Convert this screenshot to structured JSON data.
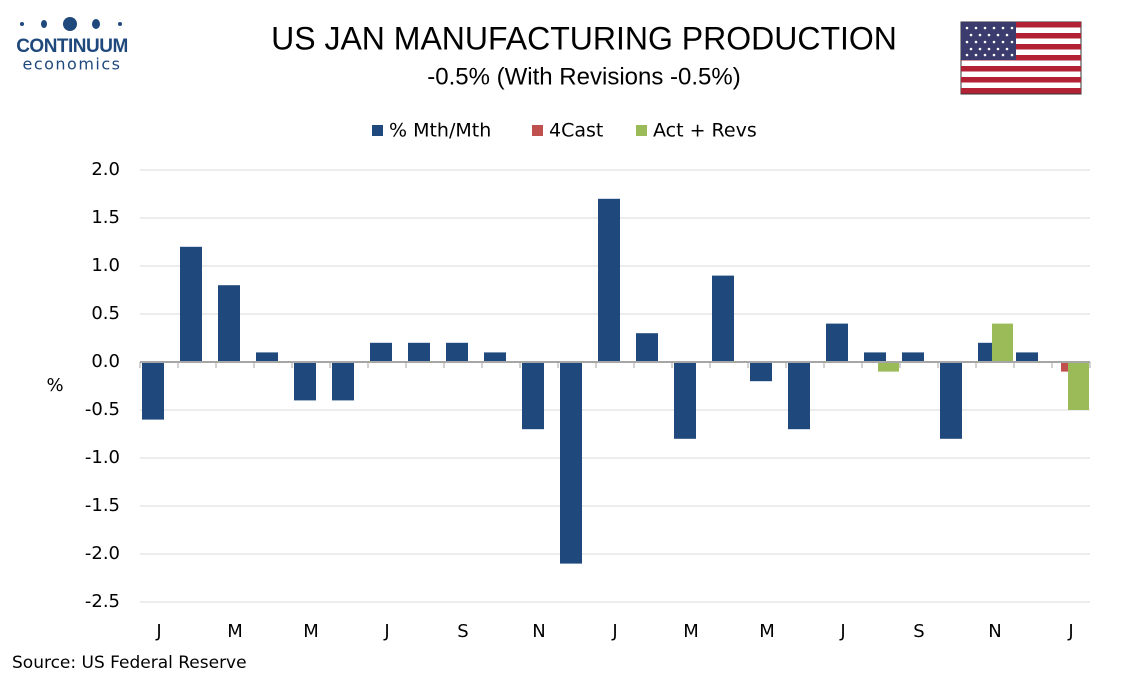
{
  "brand": {
    "name": "CONTINUUM",
    "tagline": "economics"
  },
  "source": "Source: US Federal Reserve",
  "chart_data": {
    "type": "bar",
    "title": "US JAN MANUFACTURING PRODUCTION",
    "subtitle": "-0.5% (With Revisions -0.5%)",
    "y_label": "%",
    "categories": [
      "J",
      null,
      "M",
      null,
      "M",
      null,
      "J",
      null,
      "S",
      null,
      "N",
      null,
      "J",
      null,
      "M",
      null,
      "M",
      null,
      "J",
      null,
      "S",
      null,
      "N",
      null,
      "J"
    ],
    "series": [
      {
        "name": "% Mth/Mth",
        "color": "#1f497d",
        "values": [
          -0.6,
          1.2,
          0.8,
          0.1,
          -0.4,
          -0.4,
          0.2,
          0.2,
          0.2,
          0.1,
          -0.7,
          -2.1,
          1.7,
          0.3,
          -0.8,
          0.9,
          -0.2,
          -0.7,
          0.4,
          0.1,
          0.1,
          -0.8,
          0.2,
          0.1,
          null
        ]
      },
      {
        "name": "4Cast",
        "color": "#c0504d",
        "values": [
          null,
          null,
          null,
          null,
          null,
          null,
          null,
          null,
          null,
          null,
          null,
          null,
          null,
          null,
          null,
          null,
          null,
          null,
          null,
          null,
          null,
          null,
          null,
          null,
          -0.1
        ]
      },
      {
        "name": "Act + Revs",
        "color": "#9bbb59",
        "values": [
          null,
          null,
          null,
          null,
          null,
          null,
          null,
          null,
          null,
          null,
          null,
          null,
          null,
          null,
          null,
          null,
          null,
          null,
          null,
          -0.1,
          null,
          null,
          0.4,
          null,
          -0.5
        ]
      }
    ],
    "ylim": [
      -2.5,
      2.0
    ],
    "yticks": [
      {
        "value": 2.0,
        "label": "2.0"
      },
      1.5,
      {
        "value": 1.0,
        "label": "1.0"
      },
      0.5,
      {
        "value": 0.0,
        "label": "0.0"
      },
      -0.5,
      {
        "value": -1.0,
        "label": "-1.0"
      },
      -1.5,
      {
        "value": -2.0,
        "label": "-2.0"
      },
      -2.5
    ],
    "grid": true,
    "legend": "top"
  }
}
